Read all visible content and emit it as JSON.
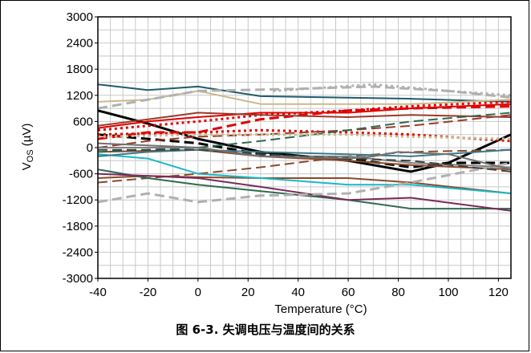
{
  "chart_data": {
    "type": "line",
    "xlabel": "Temperature (°C)",
    "ylabel_main": "V",
    "ylabel_sub": "OS",
    "ylabel_unit": " (µV)",
    "xlim": [
      -40,
      125
    ],
    "ylim": [
      -3000,
      3000
    ],
    "x_ticks": [
      "-40",
      "-20",
      "0",
      "20",
      "40",
      "60",
      "80",
      "100",
      "120"
    ],
    "y_ticks": [
      "3000",
      "2400",
      "1800",
      "1200",
      "600",
      "0",
      "-600",
      "-1200",
      "-1800",
      "-2400",
      "-3000"
    ],
    "grid": true,
    "series": [
      {
        "color": "#1f5c6b",
        "dash": "solid",
        "width": 2,
        "points": [
          [
            -40,
            1450
          ],
          [
            -20,
            1320
          ],
          [
            0,
            1400
          ],
          [
            25,
            1180
          ],
          [
            85,
            1120
          ],
          [
            125,
            1050
          ]
        ]
      },
      {
        "color": "#c9b98a",
        "dash": "solid",
        "width": 2,
        "points": [
          [
            -40,
            1050
          ],
          [
            -20,
            1100
          ],
          [
            0,
            1300
          ],
          [
            25,
            1000
          ],
          [
            85,
            1000
          ],
          [
            125,
            1100
          ]
        ]
      },
      {
        "color": "#b0b0b0",
        "dash": "dash",
        "width": 3,
        "points": [
          [
            -40,
            900
          ],
          [
            -20,
            1100
          ],
          [
            0,
            1300
          ],
          [
            40,
            1350
          ],
          [
            70,
            1400
          ],
          [
            100,
            1300
          ],
          [
            125,
            1150
          ]
        ]
      },
      {
        "color": "#b0b0b0",
        "dash": "dot",
        "width": 3,
        "points": [
          [
            30,
            1300
          ],
          [
            70,
            1450
          ],
          [
            100,
            1300
          ],
          [
            125,
            1200
          ]
        ]
      },
      {
        "color": "#000000",
        "dash": "solid",
        "width": 3,
        "points": [
          [
            -40,
            850
          ],
          [
            -20,
            550
          ],
          [
            0,
            200
          ],
          [
            25,
            -100
          ],
          [
            60,
            -300
          ],
          [
            85,
            -550
          ],
          [
            100,
            -350
          ],
          [
            125,
            300
          ]
        ]
      },
      {
        "color": "#000000",
        "dash": "dash",
        "width": 3,
        "points": [
          [
            -40,
            300
          ],
          [
            -20,
            200
          ],
          [
            0,
            100
          ],
          [
            25,
            -150
          ],
          [
            60,
            -250
          ],
          [
            85,
            -450
          ],
          [
            100,
            -350
          ],
          [
            125,
            -350
          ]
        ]
      },
      {
        "color": "#e00000",
        "dash": "solid",
        "width": 2,
        "points": [
          [
            -40,
            450
          ],
          [
            -20,
            600
          ],
          [
            0,
            700
          ],
          [
            25,
            800
          ],
          [
            60,
            800
          ],
          [
            85,
            900
          ],
          [
            125,
            1000
          ]
        ]
      },
      {
        "color": "#e00000",
        "dash": "dash",
        "width": 3,
        "points": [
          [
            -40,
            200
          ],
          [
            -20,
            350
          ],
          [
            0,
            350
          ],
          [
            25,
            650
          ],
          [
            60,
            850
          ],
          [
            85,
            900
          ],
          [
            125,
            950
          ]
        ]
      },
      {
        "color": "#e00000",
        "dash": "dot",
        "width": 3,
        "points": [
          [
            -40,
            400
          ],
          [
            -20,
            500
          ],
          [
            0,
            600
          ],
          [
            25,
            750
          ],
          [
            60,
            850
          ],
          [
            85,
            950
          ],
          [
            125,
            1050
          ]
        ]
      },
      {
        "color": "#e00000",
        "dash": "dot",
        "width": 3,
        "points": [
          [
            -40,
            300
          ],
          [
            0,
            350
          ],
          [
            25,
            400
          ],
          [
            60,
            350
          ],
          [
            85,
            300
          ],
          [
            125,
            150
          ]
        ]
      },
      {
        "color": "#9a3a2a",
        "dash": "solid",
        "width": 2,
        "points": [
          [
            -40,
            500
          ],
          [
            -20,
            650
          ],
          [
            0,
            800
          ],
          [
            25,
            750
          ],
          [
            60,
            700
          ],
          [
            85,
            750
          ],
          [
            125,
            700
          ]
        ]
      },
      {
        "color": "#9a3a2a",
        "dash": "dash",
        "width": 2,
        "points": [
          [
            -40,
            0
          ],
          [
            -20,
            150
          ],
          [
            0,
            250
          ],
          [
            25,
            300
          ],
          [
            60,
            400
          ],
          [
            85,
            500
          ],
          [
            125,
            750
          ]
        ]
      },
      {
        "color": "#8b4a2a",
        "dash": "solid",
        "width": 2,
        "points": [
          [
            -40,
            -100
          ],
          [
            0,
            -50
          ],
          [
            25,
            -200
          ],
          [
            60,
            -300
          ],
          [
            85,
            -400
          ],
          [
            125,
            -500
          ]
        ]
      },
      {
        "color": "#8b4a2a",
        "dash": "dash",
        "width": 2,
        "points": [
          [
            -40,
            -800
          ],
          [
            -20,
            -700
          ],
          [
            0,
            -600
          ],
          [
            25,
            -450
          ],
          [
            60,
            -200
          ],
          [
            85,
            -100
          ],
          [
            125,
            -50
          ]
        ]
      },
      {
        "color": "#8b4a2a",
        "dash": "solid",
        "width": 2,
        "points": [
          [
            -40,
            -700
          ],
          [
            -20,
            -650
          ],
          [
            0,
            -680
          ],
          [
            25,
            -700
          ],
          [
            60,
            -700
          ],
          [
            85,
            -800
          ],
          [
            125,
            -1050
          ]
        ]
      },
      {
        "color": "#2e6b4f",
        "dash": "solid",
        "width": 2,
        "points": [
          [
            -40,
            -500
          ],
          [
            -20,
            -700
          ],
          [
            0,
            -850
          ],
          [
            25,
            -1000
          ],
          [
            60,
            -1200
          ],
          [
            85,
            -1400
          ],
          [
            125,
            -1400
          ]
        ]
      },
      {
        "color": "#2e6b4f",
        "dash": "dash",
        "width": 2,
        "points": [
          [
            -40,
            -100
          ],
          [
            -20,
            -50
          ],
          [
            0,
            0
          ],
          [
            25,
            150
          ],
          [
            60,
            400
          ],
          [
            85,
            600
          ],
          [
            125,
            800
          ]
        ]
      },
      {
        "color": "#1ab8c8",
        "dash": "solid",
        "width": 2,
        "points": [
          [
            -40,
            -150
          ],
          [
            -20,
            -250
          ],
          [
            0,
            -600
          ],
          [
            25,
            -700
          ],
          [
            60,
            -850
          ],
          [
            85,
            -850
          ],
          [
            125,
            -1050
          ]
        ]
      },
      {
        "color": "#7a2a5a",
        "dash": "solid",
        "width": 2,
        "points": [
          [
            -40,
            -600
          ],
          [
            -20,
            -650
          ],
          [
            0,
            -700
          ],
          [
            25,
            -900
          ],
          [
            60,
            -1200
          ],
          [
            85,
            -1150
          ],
          [
            125,
            -1450
          ]
        ]
      },
      {
        "color": "#3a7a8a",
        "dash": "solid",
        "width": 2,
        "points": [
          [
            -40,
            -200
          ],
          [
            -20,
            -100
          ],
          [
            0,
            -50
          ],
          [
            25,
            -100
          ],
          [
            60,
            -150
          ],
          [
            85,
            -200
          ],
          [
            125,
            -50
          ]
        ]
      },
      {
        "color": "#c9b98a",
        "dash": "dot",
        "width": 3,
        "points": [
          [
            -40,
            250
          ],
          [
            0,
            300
          ],
          [
            25,
            300
          ],
          [
            60,
            300
          ],
          [
            85,
            250
          ],
          [
            125,
            200
          ]
        ]
      },
      {
        "color": "#b0b0b0",
        "dash": "dash",
        "width": 3,
        "points": [
          [
            -40,
            -1250
          ],
          [
            -20,
            -1050
          ],
          [
            0,
            -1250
          ],
          [
            25,
            -1100
          ],
          [
            60,
            -1050
          ],
          [
            85,
            -800
          ],
          [
            125,
            -350
          ]
        ]
      },
      {
        "color": "#808080",
        "dash": "solid",
        "width": 2,
        "points": [
          [
            -40,
            0
          ],
          [
            0,
            0
          ],
          [
            25,
            -200
          ],
          [
            60,
            -200
          ],
          [
            85,
            -350
          ],
          [
            125,
            -450
          ]
        ]
      },
      {
        "color": "#404040",
        "dash": "dash",
        "width": 2,
        "points": [
          [
            -40,
            -50
          ],
          [
            0,
            -50
          ],
          [
            25,
            -150
          ],
          [
            60,
            -250
          ],
          [
            85,
            -300
          ],
          [
            125,
            -550
          ]
        ]
      },
      {
        "color": "#707070",
        "dash": "solid",
        "width": 2,
        "points": [
          [
            -40,
            100
          ],
          [
            -20,
            50
          ],
          [
            0,
            0
          ],
          [
            25,
            -200
          ],
          [
            60,
            -250
          ],
          [
            70,
            -200
          ],
          [
            80,
            -100
          ],
          [
            100,
            -150
          ],
          [
            125,
            -500
          ]
        ]
      }
    ]
  },
  "caption": "图 6-3. 失调电压与温度间的关系"
}
